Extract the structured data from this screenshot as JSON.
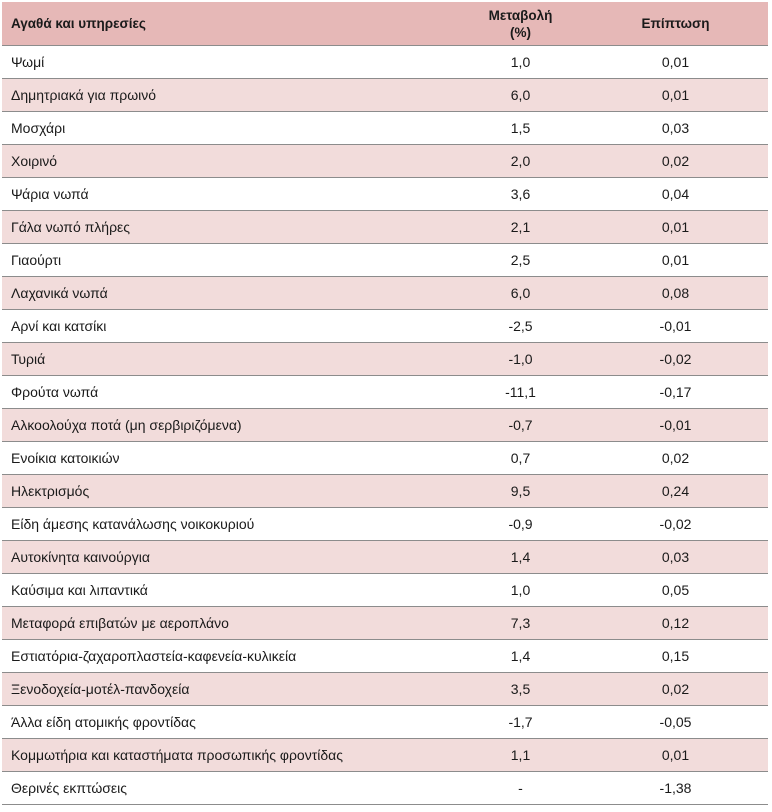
{
  "header": {
    "goods_services": "Αγαθά και υπηρεσίες",
    "change_line1": "Μεταβολή",
    "change_line2": "(%)",
    "impact": "Επίπτωση"
  },
  "rows": [
    {
      "name": "Ψωμί",
      "change": "1,0",
      "impact": "0,01"
    },
    {
      "name": "Δημητριακά για πρωινό",
      "change": "6,0",
      "impact": "0,01"
    },
    {
      "name": "Μοσχάρι",
      "change": "1,5",
      "impact": "0,03"
    },
    {
      "name": "Χοιρινό",
      "change": "2,0",
      "impact": "0,02"
    },
    {
      "name": "Ψάρια νωπά",
      "change": "3,6",
      "impact": "0,04"
    },
    {
      "name": "Γάλα νωπό πλήρες",
      "change": "2,1",
      "impact": "0,01"
    },
    {
      "name": "Γιαούρτι",
      "change": "2,5",
      "impact": "0,01"
    },
    {
      "name": "Λαχανικά νωπά",
      "change": "6,0",
      "impact": "0,08"
    },
    {
      "name": "Αρνί και κατσίκι",
      "change": "-2,5",
      "impact": "-0,01"
    },
    {
      "name": "Τυριά",
      "change": "-1,0",
      "impact": "-0,02"
    },
    {
      "name": "Φρούτα νωπά",
      "change": "-11,1",
      "impact": "-0,17"
    },
    {
      "name": "Αλκοολούχα ποτά (μη σερβιριζόμενα)",
      "change": "-0,7",
      "impact": "-0,01"
    },
    {
      "name": "Ενοίκια κατοικιών",
      "change": "0,7",
      "impact": "0,02"
    },
    {
      "name": "Ηλεκτρισμός",
      "change": "9,5",
      "impact": "0,24"
    },
    {
      "name": "Είδη άμεσης κατανάλωσης νοικοκυριού",
      "change": "-0,9",
      "impact": "-0,02"
    },
    {
      "name": "Αυτοκίνητα καινούργια",
      "change": "1,4",
      "impact": "0,03"
    },
    {
      "name": "Καύσιμα και λιπαντικά",
      "change": "1,0",
      "impact": "0,05"
    },
    {
      "name": "Μεταφορά επιβατών με αεροπλάνο",
      "change": "7,3",
      "impact": "0,12"
    },
    {
      "name": "Εστιατόρια-ζαχαροπλαστεία-καφενεία-κυλικεία",
      "change": "1,4",
      "impact": "0,15"
    },
    {
      "name": "Ξενοδοχεία-μοτέλ-πανδοχεία",
      "change": "3,5",
      "impact": "0,02"
    },
    {
      "name": "Άλλα είδη ατομικής φροντίδας",
      "change": "-1,7",
      "impact": "-0,05"
    },
    {
      "name": "Κομμωτήρια και καταστήματα προσωπικής φροντίδας",
      "change": "1,1",
      "impact": "0,01"
    },
    {
      "name": "Θερινές εκπτώσεις",
      "change": "-",
      "impact": "-1,38"
    }
  ],
  "colors": {
    "header_bg": "#e6b8b7",
    "stripe_bg": "#f2dcdb",
    "row_bg": "#ffffff",
    "border": "#8c8c8c"
  }
}
